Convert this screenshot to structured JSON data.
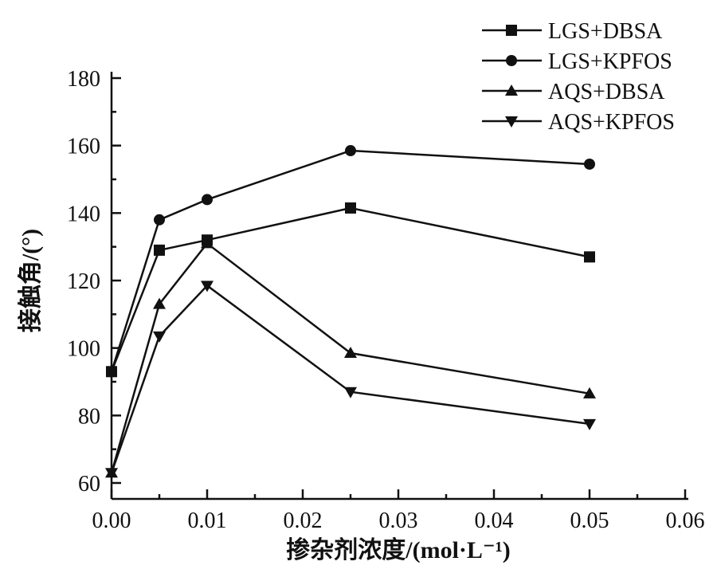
{
  "chart_data": {
    "type": "line",
    "xlabel": "掺杂剂浓度/(mol·L⁻¹)",
    "ylabel": "接触角/(°)",
    "xlim": [
      0,
      0.06
    ],
    "ylim": [
      60,
      180
    ],
    "xticks": [
      "0.00",
      "0.01",
      "0.02",
      "0.03",
      "0.04",
      "0.05",
      "0.06"
    ],
    "yticks": [
      "60",
      "80",
      "100",
      "120",
      "140",
      "160",
      "180"
    ],
    "legend_position": "top-right",
    "x": [
      0,
      0.005,
      0.01,
      0.025,
      0.05
    ],
    "series": [
      {
        "name": "LGS+DBSA",
        "marker": "square",
        "values": [
          93,
          129,
          132,
          141.5,
          127
        ]
      },
      {
        "name": "LGS+KPFOS",
        "marker": "circle",
        "values": [
          93,
          138,
          144,
          158.5,
          154.5
        ]
      },
      {
        "name": "AQS+DBSA",
        "marker": "triangle-up",
        "values": [
          63,
          113,
          131,
          98.5,
          86.5
        ]
      },
      {
        "name": "AQS+KPFOS",
        "marker": "triangle-down",
        "values": [
          63,
          103.5,
          118.5,
          87,
          77.5
        ]
      }
    ]
  }
}
